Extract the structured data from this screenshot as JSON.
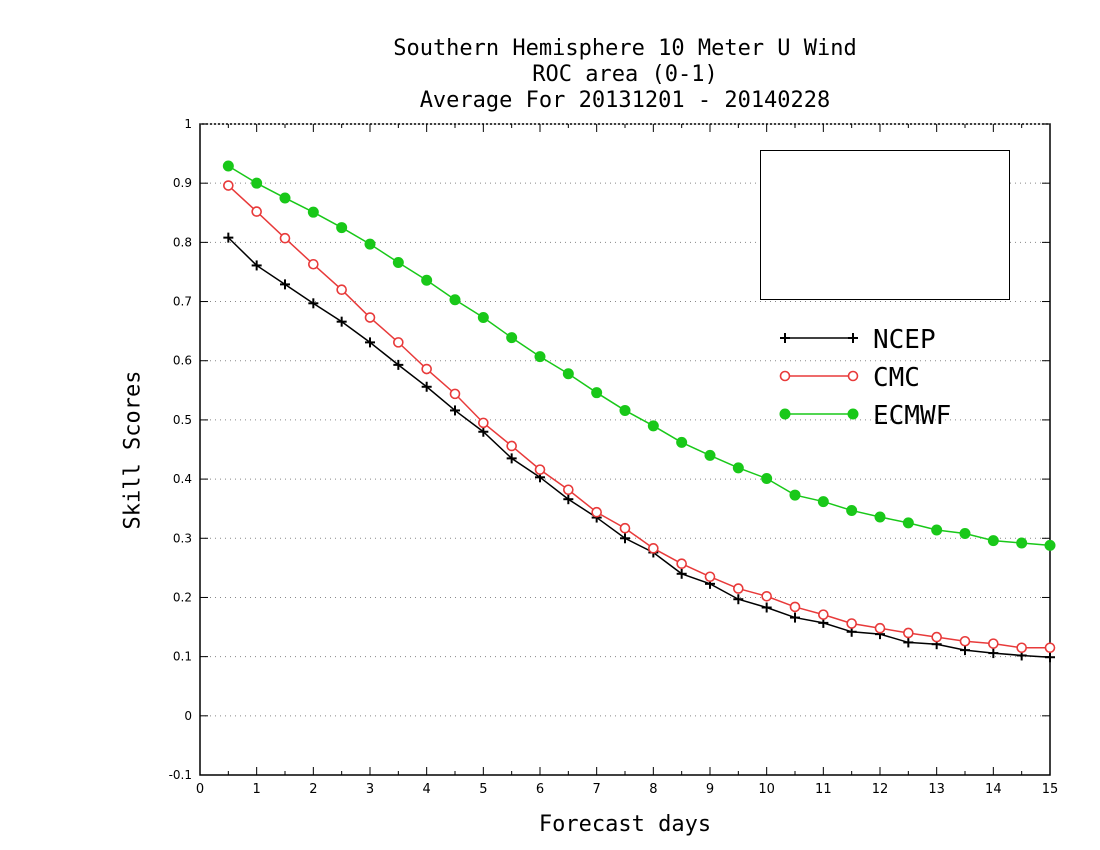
{
  "chart_data": {
    "type": "line",
    "title": "Southern Hemisphere 10 Meter U Wind",
    "subtitle_1": "ROC area (0-1)",
    "subtitle_2": "Average For 20131201 - 20140228",
    "xlabel": "Forecast days",
    "ylabel": "Skill Scores",
    "xlim": [
      0,
      15
    ],
    "ylim": [
      -0.1,
      1
    ],
    "xticks": [
      "0",
      "1",
      "2",
      "3",
      "4",
      "5",
      "6",
      "7",
      "8",
      "9",
      "10",
      "11",
      "12",
      "13",
      "14",
      "15"
    ],
    "yticks": [
      "-0.1",
      "0",
      "0.1",
      "0.2",
      "0.3",
      "0.4",
      "0.5",
      "0.6",
      "0.7",
      "0.8",
      "0.9",
      "1"
    ],
    "grid": "horizontal dotted",
    "legend_position": "top-right",
    "x": [
      0.5,
      1,
      1.5,
      2,
      2.5,
      3,
      3.5,
      4,
      4.5,
      5,
      5.5,
      6,
      6.5,
      7,
      7.5,
      8,
      8.5,
      9,
      9.5,
      10,
      10.5,
      11,
      11.5,
      12,
      12.5,
      13,
      13.5,
      14,
      14.5,
      15
    ],
    "series": [
      {
        "name": "NCEP",
        "color": "#000000",
        "marker": "plus",
        "values": [
          0.808,
          0.761,
          0.729,
          0.697,
          0.666,
          0.631,
          0.593,
          0.556,
          0.516,
          0.48,
          0.435,
          0.403,
          0.366,
          0.335,
          0.3,
          0.276,
          0.24,
          0.223,
          0.197,
          0.183,
          0.166,
          0.157,
          0.142,
          0.138,
          0.124,
          0.121,
          0.111,
          0.106,
          0.102,
          0.099
        ]
      },
      {
        "name": "CMC",
        "color": "#e83a3a",
        "marker": "open-circle",
        "values": [
          0.896,
          0.852,
          0.807,
          0.763,
          0.72,
          0.673,
          0.631,
          0.586,
          0.544,
          0.495,
          0.456,
          0.416,
          0.382,
          0.344,
          0.317,
          0.283,
          0.257,
          0.235,
          0.215,
          0.202,
          0.184,
          0.171,
          0.156,
          0.148,
          0.14,
          0.133,
          0.126,
          0.122,
          0.115,
          0.115
        ]
      },
      {
        "name": "ECMWF",
        "color": "#19c819",
        "marker": "filled-circle",
        "values": [
          0.929,
          0.9,
          0.875,
          0.851,
          0.825,
          0.797,
          0.766,
          0.736,
          0.703,
          0.673,
          0.639,
          0.607,
          0.578,
          0.546,
          0.516,
          0.49,
          0.462,
          0.44,
          0.419,
          0.401,
          0.373,
          0.362,
          0.347,
          0.336,
          0.326,
          0.314,
          0.308,
          0.296,
          0.292,
          0.288
        ]
      }
    ]
  }
}
